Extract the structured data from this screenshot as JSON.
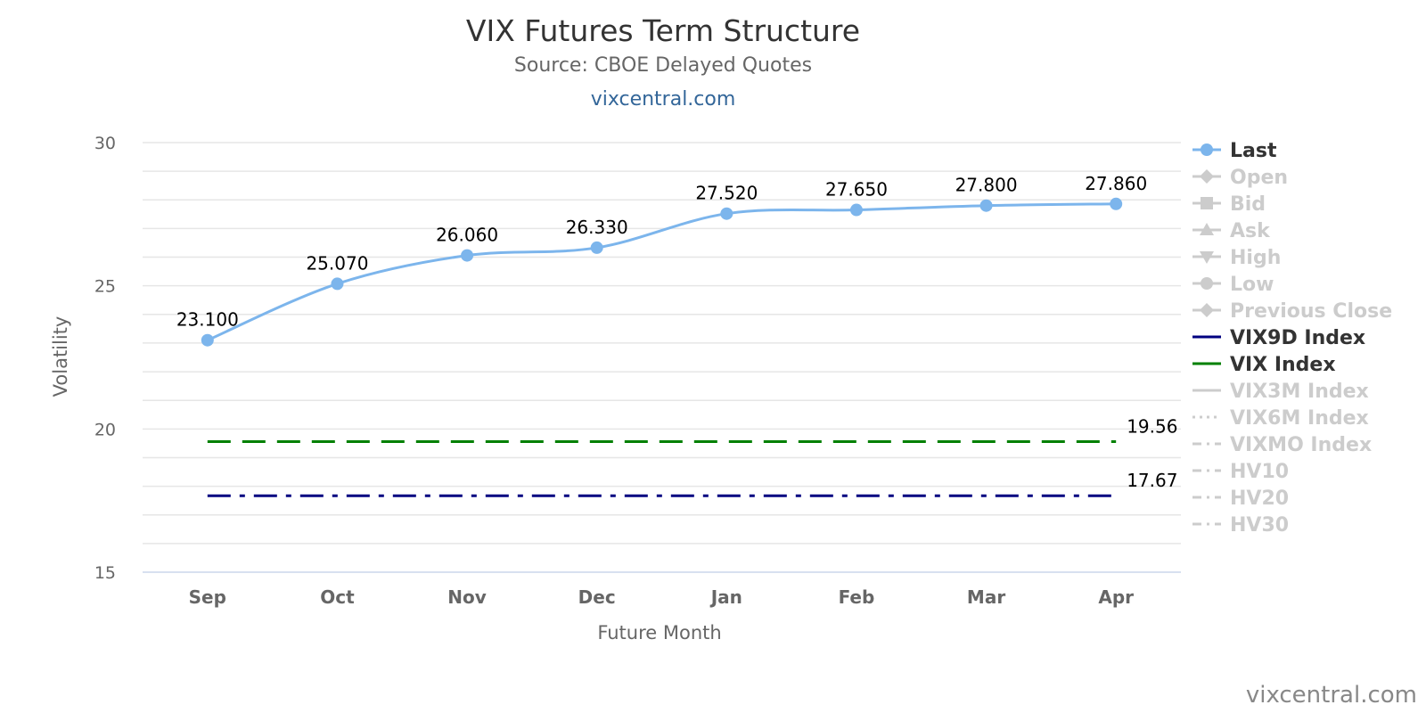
{
  "chart_data": {
    "type": "line",
    "title": "VIX Futures Term Structure",
    "subtitle": "Source: CBOE Delayed Quotes",
    "link_text": "vixcentral.com",
    "watermark": "vixcentral.com",
    "xlabel": "Future Month",
    "ylabel": "Volatility",
    "ylim": [
      15,
      30
    ],
    "yticks": [
      "15",
      "20",
      "25",
      "30"
    ],
    "grid": true,
    "legend_position": "right",
    "categories": [
      "Sep",
      "Oct",
      "Nov",
      "Dec",
      "Jan",
      "Feb",
      "Mar",
      "Apr"
    ],
    "series": [
      {
        "name": "Last",
        "color": "#7cb5ec",
        "values": [
          23.1,
          25.07,
          26.06,
          26.33,
          27.52,
          27.65,
          27.8,
          27.86
        ],
        "labels": [
          "23.100",
          "25.070",
          "26.060",
          "26.330",
          "27.520",
          "27.650",
          "27.800",
          "27.860"
        ]
      },
      {
        "name": "VIX Index",
        "color": "#008000",
        "style": "dashed",
        "value": 19.56,
        "label": "19.56"
      },
      {
        "name": "VIX9D Index",
        "color": "#000080",
        "style": "dashdot",
        "value": 17.67,
        "label": "17.67"
      }
    ],
    "legend": [
      {
        "name": "Last",
        "active": true,
        "symbol": "circle",
        "color": "#7cb5ec",
        "line": "solid"
      },
      {
        "name": "Open",
        "active": false,
        "symbol": "diamond",
        "color": "#cccccc",
        "line": "solid"
      },
      {
        "name": "Bid",
        "active": false,
        "symbol": "square",
        "color": "#cccccc",
        "line": "solid"
      },
      {
        "name": "Ask",
        "active": false,
        "symbol": "triangle",
        "color": "#cccccc",
        "line": "solid"
      },
      {
        "name": "High",
        "active": false,
        "symbol": "triangle-down",
        "color": "#cccccc",
        "line": "solid"
      },
      {
        "name": "Low",
        "active": false,
        "symbol": "circle",
        "color": "#cccccc",
        "line": "solid"
      },
      {
        "name": "Previous Close",
        "active": false,
        "symbol": "diamond",
        "color": "#cccccc",
        "line": "solid"
      },
      {
        "name": "VIX9D Index",
        "active": true,
        "symbol": "none",
        "color": "#000080",
        "line": "solid"
      },
      {
        "name": "VIX Index",
        "active": true,
        "symbol": "none",
        "color": "#008000",
        "line": "solid"
      },
      {
        "name": "VIX3M Index",
        "active": false,
        "symbol": "none",
        "color": "#cccccc",
        "line": "solid"
      },
      {
        "name": "VIX6M Index",
        "active": false,
        "symbol": "none",
        "color": "#cccccc",
        "line": "dotted"
      },
      {
        "name": "VIXMO Index",
        "active": false,
        "symbol": "none",
        "color": "#cccccc",
        "line": "dashdot"
      },
      {
        "name": "HV10",
        "active": false,
        "symbol": "none",
        "color": "#cccccc",
        "line": "dashdot"
      },
      {
        "name": "HV20",
        "active": false,
        "symbol": "none",
        "color": "#cccccc",
        "line": "dashdot"
      },
      {
        "name": "HV30",
        "active": false,
        "symbol": "none",
        "color": "#cccccc",
        "line": "dashdot"
      }
    ]
  }
}
